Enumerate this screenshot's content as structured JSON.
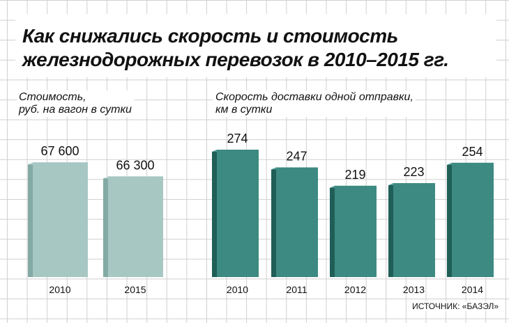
{
  "title": {
    "line1": "Как снижались скорость и стоимость",
    "line2": "железнодорожных перевозок в 2010–2015 гг."
  },
  "source": "ИСТОЧНИК: «БАЗЭЛ»",
  "colors": {
    "cost_front": "#a7c7c3",
    "cost_side": "#83aaa5",
    "cost_top": "#c6dcd9",
    "speed_front": "#3d8a82",
    "speed_side": "#1f5f58",
    "speed_top": "#5aa49c",
    "grid": "#cfcfcf",
    "text": "#111111"
  },
  "chart_data": [
    {
      "type": "bar",
      "subtitle_lines": [
        "Стоимость,",
        "руб. на вагон в сутки"
      ],
      "categories": [
        "2010",
        "2015"
      ],
      "value_labels": [
        "67 600",
        "66 300"
      ],
      "values": [
        67600,
        66300
      ],
      "ylim": [
        57000,
        68000
      ]
    },
    {
      "type": "bar",
      "subtitle_lines": [
        "Скорость доставки одной отправки,",
        "км в сутки"
      ],
      "categories": [
        "2010",
        "2011",
        "2012",
        "2013",
        "2014"
      ],
      "value_labels": [
        "274",
        "247",
        "219",
        "223",
        "254"
      ],
      "values": [
        274,
        247,
        219,
        223,
        254
      ],
      "ylim": [
        80,
        274
      ]
    }
  ]
}
